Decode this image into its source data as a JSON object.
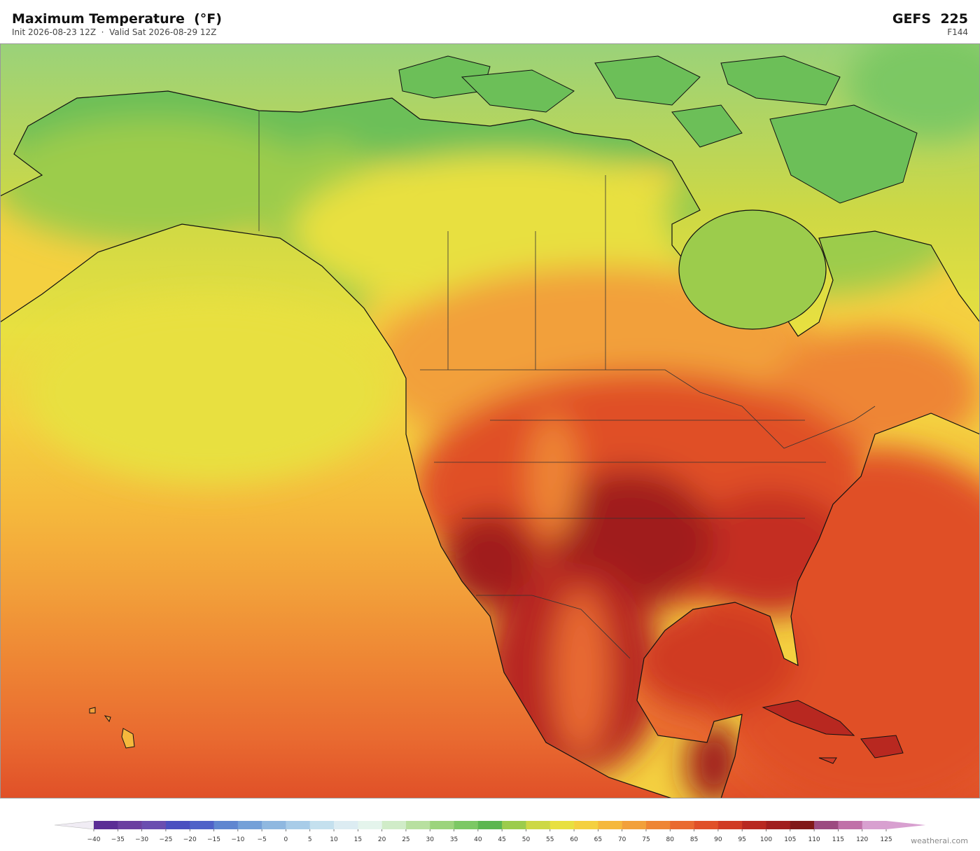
{
  "header": {
    "title": "Maximum Temperature  (°F)",
    "subtitle": "Init 2026-08-23 12Z  ·  Valid Sat 2026-08-29 12Z",
    "model": "GEFS  225",
    "forecast_hour": "F144"
  },
  "colorbar": {
    "ticks": [
      {
        "value": -40,
        "label": "−40"
      },
      {
        "value": -35,
        "label": "−35"
      },
      {
        "value": -30,
        "label": "−30"
      },
      {
        "value": -25,
        "label": "−25"
      },
      {
        "value": -20,
        "label": "−20"
      },
      {
        "value": -15,
        "label": "−15"
      },
      {
        "value": -10,
        "label": "−10"
      },
      {
        "value": -5,
        "label": "−5"
      },
      0,
      5,
      10,
      15,
      20,
      25,
      30,
      35,
      40,
      45,
      50,
      55,
      60,
      65,
      70,
      75,
      80,
      85,
      90,
      95,
      100,
      105,
      110,
      115,
      120,
      125
    ],
    "colors": [
      "#5b2d95",
      "#6b3fa0",
      "#6a4db0",
      "#4b4fc0",
      "#4f62c8",
      "#5f86d0",
      "#74a0d8",
      "#8fb8e0",
      "#a8cce8",
      "#c4e0ee",
      "#dcecf2",
      "#e4f4ec",
      "#d0ecc8",
      "#b8e0a0",
      "#9cd47c",
      "#7cc864",
      "#5cb650",
      "#9ccc4c",
      "#cdd845",
      "#e8e040",
      "#f4d040",
      "#f5b83c",
      "#f2a03a",
      "#ee8534",
      "#e96a30",
      "#e05028",
      "#d03a24",
      "#b82820",
      "#a01e1e",
      "#801818",
      "#9c4a80",
      "#c070a8",
      "#d8a0d0"
    ],
    "under_color": "#f0ecf4",
    "over_color": "#d8a0d0"
  },
  "attribution": "weatherai.com"
}
